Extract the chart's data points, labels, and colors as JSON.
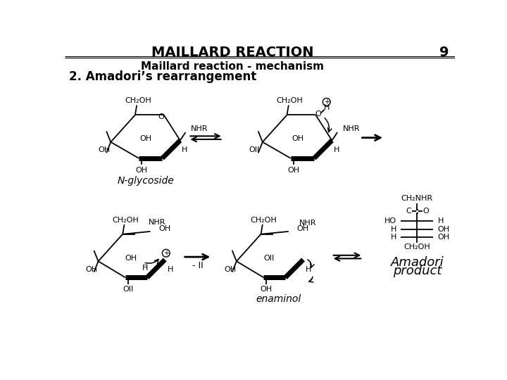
{
  "title": "MAILLARD REACTION",
  "page_num": "9",
  "subtitle": "Maillard reaction - mechanism",
  "section": "2. Amadori’s rearrangement",
  "bg_color": "#ffffff",
  "text_color": "#000000",
  "title_fontsize": 14,
  "subtitle_fontsize": 11,
  "section_fontsize": 12
}
